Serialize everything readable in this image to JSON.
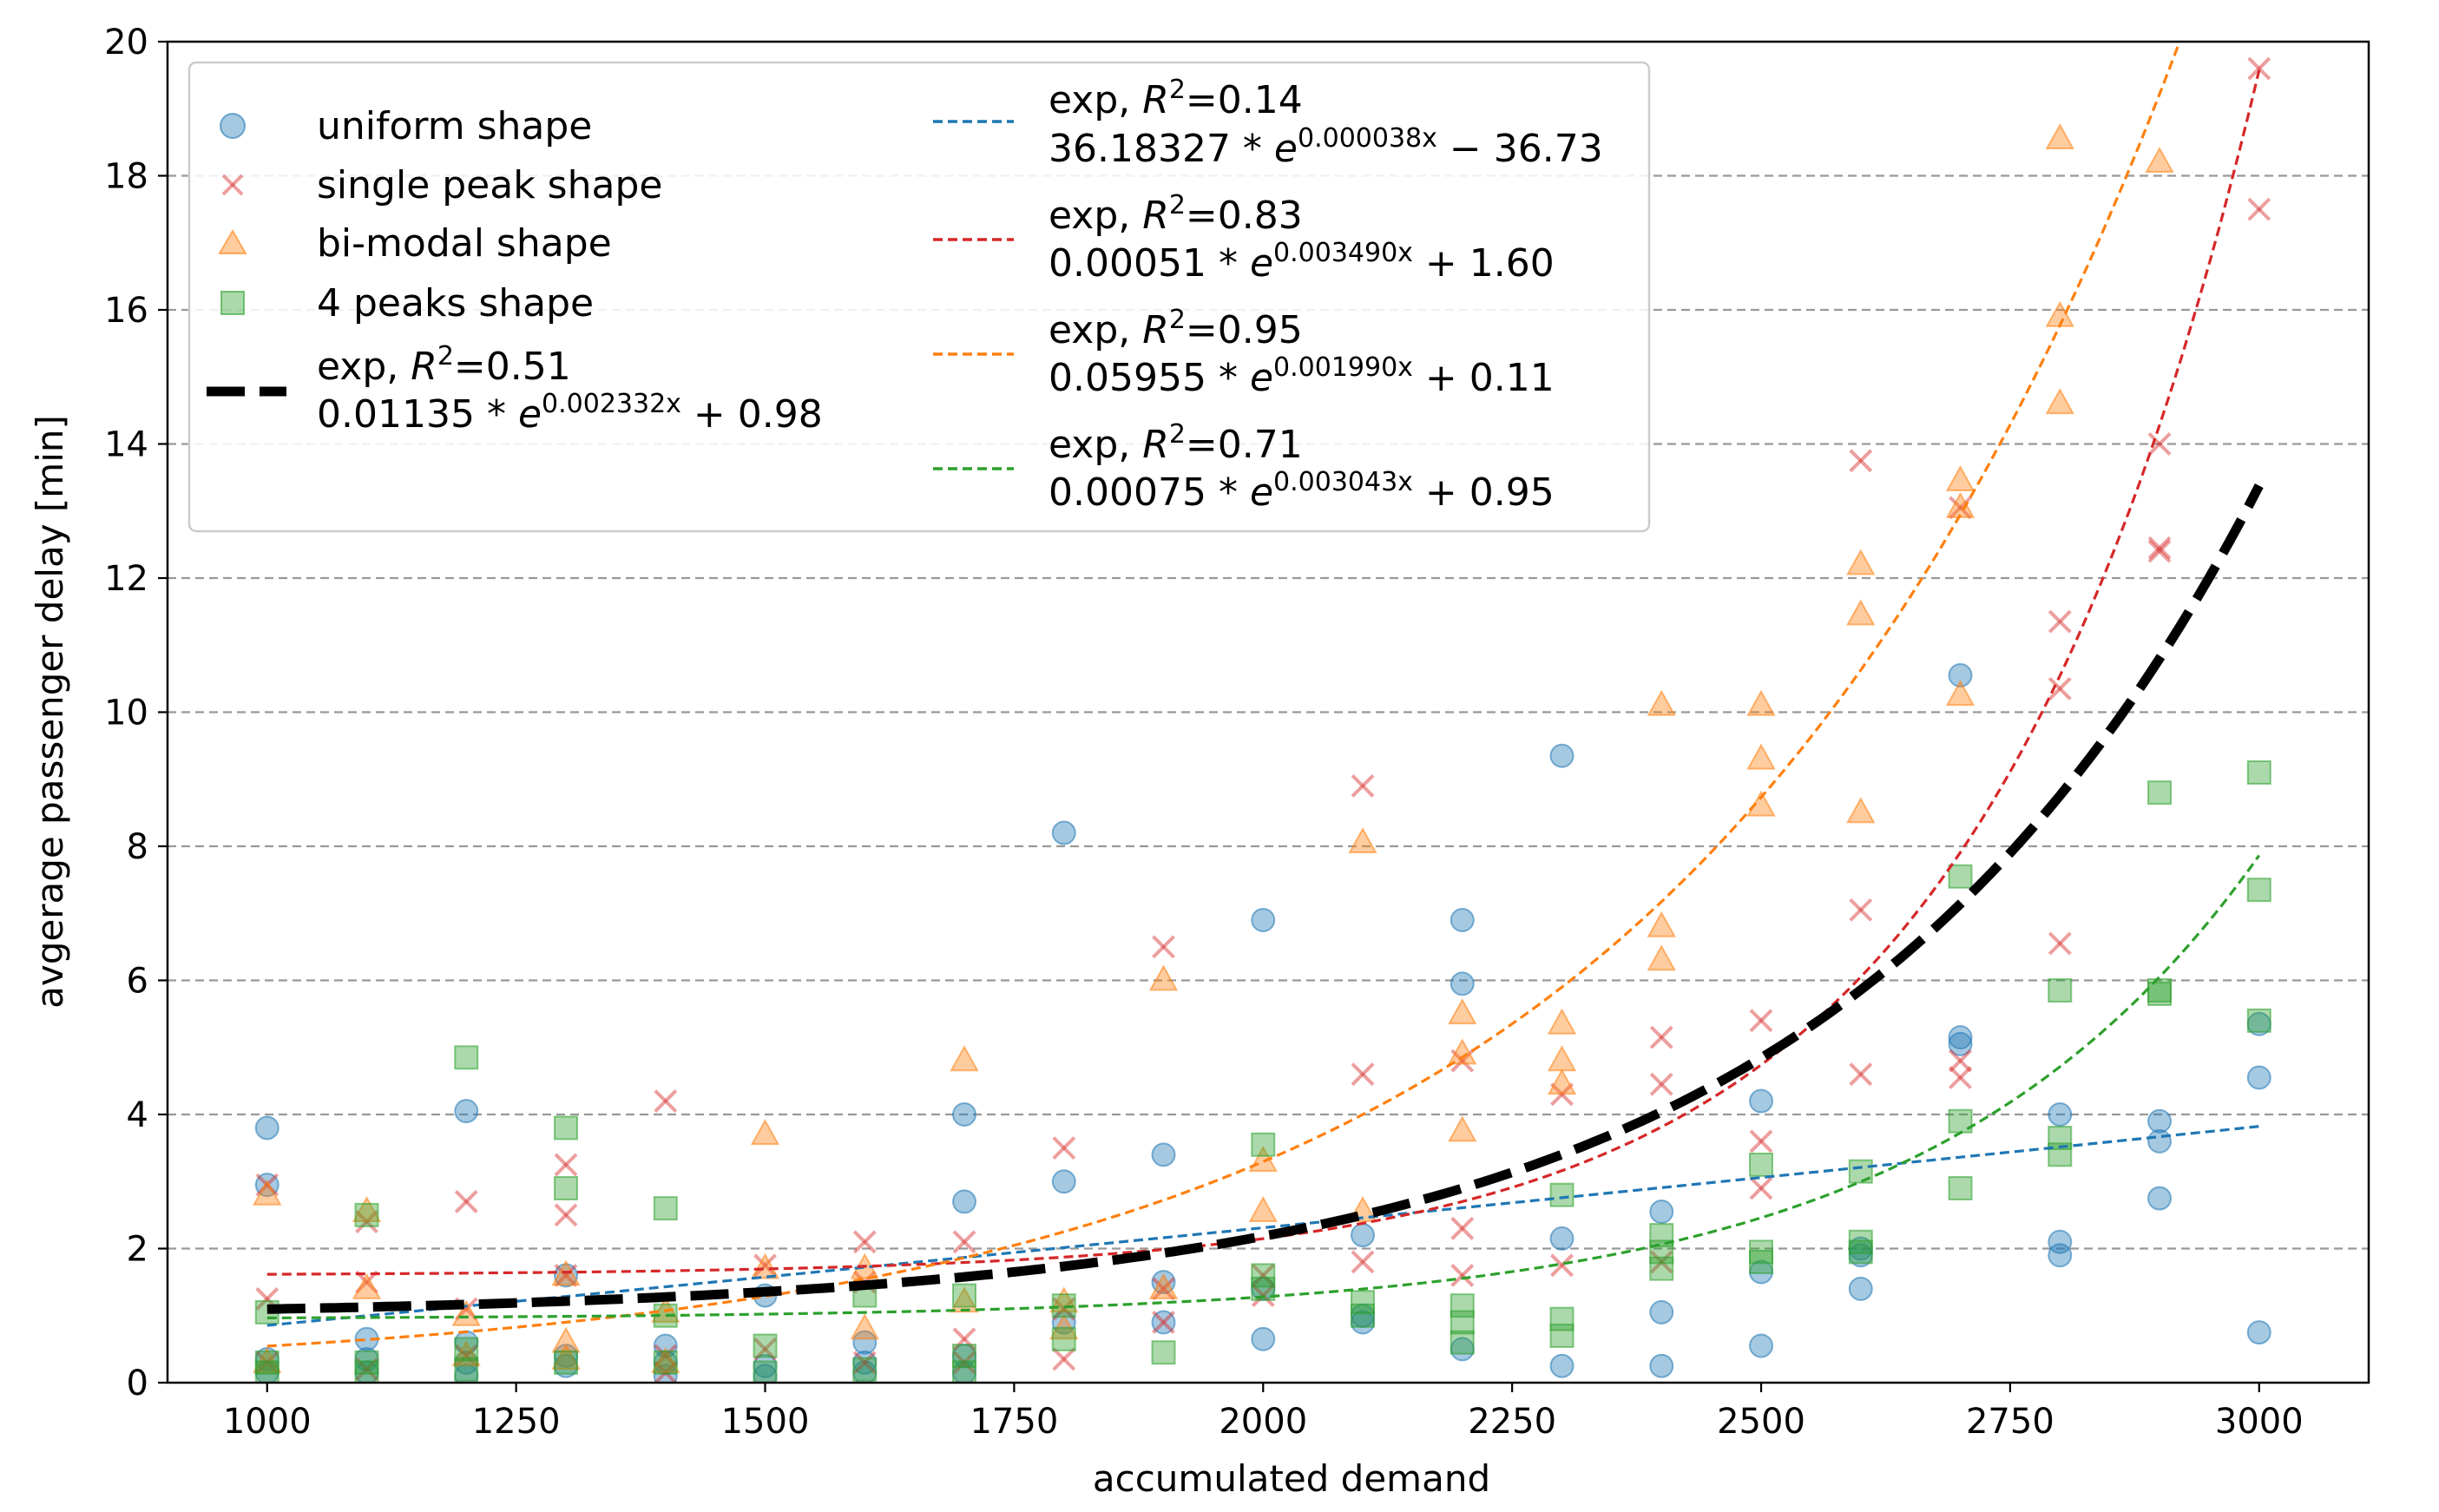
{
  "chart_data": {
    "type": "scatter",
    "xlabel": "accumulated demand",
    "ylabel": "avgerage passenger delay [min]",
    "xlim": [
      900,
      3110
    ],
    "ylim": [
      0,
      20
    ],
    "xticks": [
      1000,
      1250,
      1500,
      1750,
      2000,
      2250,
      2500,
      2750,
      3000
    ],
    "yticks": [
      0,
      2,
      4,
      6,
      8,
      10,
      12,
      14,
      16,
      18,
      20
    ],
    "grid": "y-dashed",
    "legend_position": "upper-left",
    "series": [
      {
        "name": "uniform shape",
        "marker": "circle",
        "color": "#1f77b4",
        "points": [
          [
            1000,
            3.8
          ],
          [
            1000,
            2.95
          ],
          [
            1000,
            0.35
          ],
          [
            1000,
            0.15
          ],
          [
            1100,
            0.65
          ],
          [
            1100,
            0.35
          ],
          [
            1100,
            0.15
          ],
          [
            1200,
            4.05
          ],
          [
            1200,
            0.6
          ],
          [
            1200,
            0.3
          ],
          [
            1200,
            0.1
          ],
          [
            1300,
            1.6
          ],
          [
            1300,
            0.4
          ],
          [
            1300,
            0.25
          ],
          [
            1400,
            0.55
          ],
          [
            1400,
            0.3
          ],
          [
            1400,
            0.1
          ],
          [
            1500,
            1.3
          ],
          [
            1500,
            0.25
          ],
          [
            1500,
            0.1
          ],
          [
            1600,
            0.6
          ],
          [
            1600,
            0.3
          ],
          [
            1600,
            0.15
          ],
          [
            1700,
            4.0
          ],
          [
            1700,
            2.7
          ],
          [
            1700,
            0.4
          ],
          [
            1700,
            0.15
          ],
          [
            1800,
            8.2
          ],
          [
            1800,
            3.0
          ],
          [
            1800,
            0.9
          ],
          [
            1900,
            3.4
          ],
          [
            1900,
            1.5
          ],
          [
            1900,
            0.9
          ],
          [
            2000,
            6.9
          ],
          [
            2000,
            1.4
          ],
          [
            2000,
            0.65
          ],
          [
            2100,
            2.2
          ],
          [
            2100,
            1.0
          ],
          [
            2100,
            0.9
          ],
          [
            2200,
            6.9
          ],
          [
            2200,
            5.95
          ],
          [
            2200,
            0.5
          ],
          [
            2300,
            9.35
          ],
          [
            2300,
            2.15
          ],
          [
            2300,
            0.25
          ],
          [
            2400,
            2.55
          ],
          [
            2400,
            1.05
          ],
          [
            2400,
            0.25
          ],
          [
            2500,
            4.2
          ],
          [
            2500,
            1.65
          ],
          [
            2500,
            0.55
          ],
          [
            2600,
            2.0
          ],
          [
            2600,
            1.9
          ],
          [
            2600,
            1.4
          ],
          [
            2700,
            10.55
          ],
          [
            2700,
            5.15
          ],
          [
            2700,
            5.05
          ],
          [
            2800,
            4.0
          ],
          [
            2800,
            2.1
          ],
          [
            2800,
            1.9
          ],
          [
            2900,
            3.9
          ],
          [
            2900,
            3.6
          ],
          [
            2900,
            2.75
          ],
          [
            3000,
            5.35
          ],
          [
            3000,
            4.55
          ],
          [
            3000,
            0.75
          ]
        ]
      },
      {
        "name": "single peak shape",
        "marker": "x",
        "color": "#d62728",
        "points": [
          [
            1000,
            2.95
          ],
          [
            1000,
            1.25
          ],
          [
            1000,
            0.3
          ],
          [
            1100,
            2.4
          ],
          [
            1100,
            1.5
          ],
          [
            1100,
            0.2
          ],
          [
            1200,
            2.7
          ],
          [
            1200,
            1.1
          ],
          [
            1200,
            0.4
          ],
          [
            1300,
            3.25
          ],
          [
            1300,
            2.5
          ],
          [
            1300,
            1.6
          ],
          [
            1400,
            4.2
          ],
          [
            1400,
            0.4
          ],
          [
            1400,
            0.15
          ],
          [
            1500,
            1.75
          ],
          [
            1500,
            0.5
          ],
          [
            1600,
            2.1
          ],
          [
            1600,
            1.5
          ],
          [
            1600,
            0.3
          ],
          [
            1700,
            2.1
          ],
          [
            1700,
            0.65
          ],
          [
            1700,
            0.3
          ],
          [
            1800,
            3.5
          ],
          [
            1800,
            1.1
          ],
          [
            1800,
            0.35
          ],
          [
            1900,
            6.5
          ],
          [
            1900,
            1.4
          ],
          [
            1900,
            0.9
          ],
          [
            2000,
            1.6
          ],
          [
            2000,
            1.3
          ],
          [
            2100,
            8.9
          ],
          [
            2100,
            4.6
          ],
          [
            2100,
            1.8
          ],
          [
            2200,
            4.8
          ],
          [
            2200,
            2.3
          ],
          [
            2200,
            1.6
          ],
          [
            2300,
            4.3
          ],
          [
            2300,
            1.75
          ],
          [
            2400,
            5.15
          ],
          [
            2400,
            4.45
          ],
          [
            2400,
            1.8
          ],
          [
            2500,
            5.4
          ],
          [
            2500,
            3.6
          ],
          [
            2500,
            2.9
          ],
          [
            2600,
            13.75
          ],
          [
            2600,
            7.05
          ],
          [
            2600,
            4.6
          ],
          [
            2700,
            13.05
          ],
          [
            2700,
            4.8
          ],
          [
            2700,
            4.55
          ],
          [
            2800,
            11.35
          ],
          [
            2800,
            10.35
          ],
          [
            2800,
            6.55
          ],
          [
            2900,
            14.0
          ],
          [
            2900,
            12.45
          ],
          [
            2900,
            12.4
          ],
          [
            3000,
            19.6
          ],
          [
            3000,
            17.5
          ]
        ]
      },
      {
        "name": "bi-modal shape",
        "marker": "triangle",
        "color": "#ff7f0e",
        "points": [
          [
            1000,
            2.8
          ],
          [
            1000,
            0.3
          ],
          [
            1100,
            2.55
          ],
          [
            1100,
            1.4
          ],
          [
            1200,
            1.0
          ],
          [
            1200,
            0.4
          ],
          [
            1300,
            1.6
          ],
          [
            1300,
            0.6
          ],
          [
            1300,
            0.35
          ],
          [
            1400,
            1.05
          ],
          [
            1400,
            0.3
          ],
          [
            1500,
            3.7
          ],
          [
            1500,
            1.7
          ],
          [
            1600,
            1.7
          ],
          [
            1600,
            0.8
          ],
          [
            1700,
            4.8
          ],
          [
            1700,
            1.2
          ],
          [
            1800,
            1.2
          ],
          [
            1800,
            0.8
          ],
          [
            1900,
            6.0
          ],
          [
            1900,
            1.4
          ],
          [
            2000,
            3.3
          ],
          [
            2000,
            2.55
          ],
          [
            2100,
            8.05
          ],
          [
            2100,
            2.55
          ],
          [
            2200,
            5.5
          ],
          [
            2200,
            4.9
          ],
          [
            2200,
            3.75
          ],
          [
            2300,
            5.35
          ],
          [
            2300,
            4.8
          ],
          [
            2300,
            4.45
          ],
          [
            2400,
            10.1
          ],
          [
            2400,
            6.8
          ],
          [
            2400,
            6.3
          ],
          [
            2500,
            10.1
          ],
          [
            2500,
            9.3
          ],
          [
            2500,
            8.6
          ],
          [
            2600,
            12.2
          ],
          [
            2600,
            11.45
          ],
          [
            2600,
            8.5
          ],
          [
            2700,
            13.45
          ],
          [
            2700,
            13.05
          ],
          [
            2700,
            10.25
          ],
          [
            2800,
            18.55
          ],
          [
            2800,
            15.9
          ],
          [
            2800,
            14.6
          ],
          [
            2900,
            18.2
          ]
        ]
      },
      {
        "name": "4 peaks shape",
        "marker": "square",
        "color": "#2ca02c",
        "points": [
          [
            1000,
            1.05
          ],
          [
            1000,
            0.3
          ],
          [
            1000,
            0.15
          ],
          [
            1100,
            2.5
          ],
          [
            1100,
            0.3
          ],
          [
            1100,
            0.15
          ],
          [
            1200,
            4.85
          ],
          [
            1200,
            0.5
          ],
          [
            1200,
            0.2
          ],
          [
            1300,
            3.8
          ],
          [
            1300,
            2.9
          ],
          [
            1300,
            0.3
          ],
          [
            1400,
            2.6
          ],
          [
            1400,
            1.0
          ],
          [
            1400,
            0.3
          ],
          [
            1500,
            0.55
          ],
          [
            1500,
            0.15
          ],
          [
            1600,
            1.3
          ],
          [
            1600,
            0.2
          ],
          [
            1700,
            1.3
          ],
          [
            1700,
            0.4
          ],
          [
            1700,
            0.15
          ],
          [
            1800,
            1.15
          ],
          [
            1800,
            0.65
          ],
          [
            1900,
            0.45
          ],
          [
            2000,
            3.55
          ],
          [
            2000,
            1.6
          ],
          [
            2000,
            1.4
          ],
          [
            2100,
            1.2
          ],
          [
            2100,
            1.0
          ],
          [
            2200,
            1.15
          ],
          [
            2200,
            0.9
          ],
          [
            2200,
            0.6
          ],
          [
            2300,
            2.8
          ],
          [
            2300,
            0.95
          ],
          [
            2300,
            0.7
          ],
          [
            2400,
            2.2
          ],
          [
            2400,
            1.95
          ],
          [
            2400,
            1.7
          ],
          [
            2500,
            3.25
          ],
          [
            2500,
            1.95
          ],
          [
            2500,
            1.8
          ],
          [
            2600,
            3.15
          ],
          [
            2600,
            2.1
          ],
          [
            2600,
            1.95
          ],
          [
            2700,
            7.55
          ],
          [
            2700,
            3.9
          ],
          [
            2700,
            2.9
          ],
          [
            2800,
            5.85
          ],
          [
            2800,
            3.65
          ],
          [
            2800,
            3.4
          ],
          [
            2900,
            8.8
          ],
          [
            2900,
            5.85
          ],
          [
            2900,
            5.8
          ],
          [
            3000,
            9.1
          ],
          [
            3000,
            7.35
          ],
          [
            3000,
            5.4
          ]
        ]
      }
    ],
    "fits": [
      {
        "name": "exp, R²=0.51",
        "formula": "0.01135 * e^{0.002332x} + 0.98",
        "color": "#000000",
        "a": 0.01135,
        "b": 0.002332,
        "c": 0.98,
        "thick": true
      },
      {
        "name": "exp, R²=0.14",
        "formula": "36.18327 * e^{0.000038x} − 36.73",
        "color": "#1f77b4",
        "a": 36.18327,
        "b": 3.8e-05,
        "c": -36.73
      },
      {
        "name": "exp, R²=0.83",
        "formula": "0.00051 * e^{0.003490x} + 1.60",
        "color": "#d62728",
        "a": 0.00051,
        "b": 0.00349,
        "c": 1.6
      },
      {
        "name": "exp, R²=0.95",
        "formula": "0.05955 * e^{0.001990x} + 0.11",
        "color": "#ff7f0e",
        "a": 0.05955,
        "b": 0.00199,
        "c": 0.11
      },
      {
        "name": "exp, R²=0.71",
        "formula": "0.00075 * e^{0.003043x} + 0.95",
        "color": "#2ca02c",
        "a": 0.00075,
        "b": 0.003043,
        "c": 0.95
      }
    ]
  },
  "legend": {
    "uniform": "uniform shape",
    "single_peak": "single peak shape",
    "bimodal": "bi-modal shape",
    "four_peaks": "4 peaks shape",
    "fit_all": {
      "label_prefix": "exp, ",
      "r2": "=0.51",
      "coef": "0.01135 * ",
      "exp": "0.002332x",
      "tail": " + 0.98"
    },
    "fit_uniform": {
      "label_prefix": "exp, ",
      "r2": "=0.14",
      "coef": "36.18327 * ",
      "exp": "0.000038x",
      "tail": " − 36.73"
    },
    "fit_single": {
      "label_prefix": "exp, ",
      "r2": "=0.83",
      "coef": "0.00051 * ",
      "exp": "0.003490x",
      "tail": " + 1.60"
    },
    "fit_bimodal": {
      "label_prefix": "exp, ",
      "r2": "=0.95",
      "coef": "0.05955 * ",
      "exp": "0.001990x",
      "tail": " + 0.11"
    },
    "fit_four": {
      "label_prefix": "exp, ",
      "r2": "=0.71",
      "coef": "0.00075 * ",
      "exp": "0.003043x",
      "tail": " + 0.95"
    }
  }
}
